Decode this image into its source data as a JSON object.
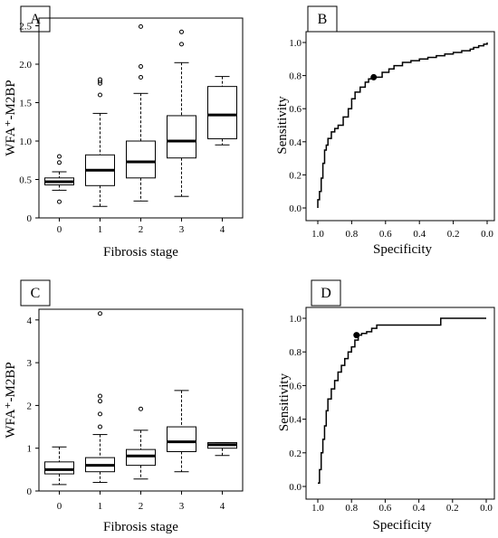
{
  "chart_data": [
    {
      "panel": "A",
      "type": "box",
      "xlabel": "Fibrosis stage",
      "ylabel": "WFA⁺-M2BP",
      "categories": [
        "0",
        "1",
        "2",
        "3",
        "4"
      ],
      "yticks": [
        "0",
        "0.5",
        "1.0",
        "1.5",
        "2.0",
        "2.5"
      ],
      "ylim": [
        0,
        2.6
      ],
      "boxes": [
        {
          "stage": "0",
          "low": 0.36,
          "q1": 0.43,
          "median": 0.47,
          "q3": 0.52,
          "high": 0.6,
          "outliers": [
            0.8,
            0.72,
            0.21
          ]
        },
        {
          "stage": "1",
          "low": 0.15,
          "q1": 0.42,
          "median": 0.62,
          "q3": 0.82,
          "high": 1.36,
          "outliers": [
            1.6,
            1.75,
            1.78,
            1.8
          ]
        },
        {
          "stage": "2",
          "low": 0.22,
          "q1": 0.52,
          "median": 0.73,
          "q3": 1.0,
          "high": 1.62,
          "outliers": [
            1.83,
            1.97,
            2.49
          ]
        },
        {
          "stage": "3",
          "low": 0.28,
          "q1": 0.78,
          "median": 1.0,
          "q3": 1.33,
          "high": 2.02,
          "outliers": [
            2.26,
            2.42
          ]
        },
        {
          "stage": "4",
          "low": 0.95,
          "q1": 1.03,
          "median": 1.34,
          "q3": 1.71,
          "high": 1.84,
          "outliers": []
        }
      ]
    },
    {
      "panel": "B",
      "type": "line",
      "xlabel": "Specificity",
      "ylabel": "Sensitivity",
      "xticks": [
        "1.0",
        "0.8",
        "0.6",
        "0.4",
        "0.2",
        "0.0"
      ],
      "yticks": [
        "0.0",
        "0.2",
        "0.4",
        "0.6",
        "0.8",
        "1.0"
      ],
      "xlim": [
        1.0,
        0.0
      ],
      "ylim": [
        0.0,
        1.0
      ],
      "x": [
        1.0,
        1.0,
        0.99,
        0.98,
        0.97,
        0.96,
        0.95,
        0.94,
        0.92,
        0.9,
        0.88,
        0.85,
        0.82,
        0.8,
        0.78,
        0.75,
        0.72,
        0.7,
        0.67,
        0.62,
        0.58,
        0.55,
        0.5,
        0.45,
        0.4,
        0.35,
        0.3,
        0.25,
        0.2,
        0.15,
        0.1,
        0.08,
        0.05,
        0.02,
        0.0
      ],
      "y": [
        0.0,
        0.05,
        0.1,
        0.18,
        0.27,
        0.35,
        0.38,
        0.42,
        0.46,
        0.48,
        0.5,
        0.55,
        0.6,
        0.66,
        0.7,
        0.73,
        0.76,
        0.78,
        0.79,
        0.82,
        0.84,
        0.86,
        0.88,
        0.89,
        0.9,
        0.91,
        0.92,
        0.93,
        0.94,
        0.95,
        0.96,
        0.97,
        0.98,
        0.99,
        1.0
      ],
      "marker": {
        "x": 0.67,
        "y": 0.79
      }
    },
    {
      "panel": "C",
      "type": "box",
      "xlabel": "Fibrosis stage",
      "ylabel": "WFA⁺-M2BP",
      "categories": [
        "0",
        "1",
        "2",
        "3",
        "4"
      ],
      "yticks": [
        "0",
        "1",
        "2",
        "3",
        "4"
      ],
      "ylim": [
        0,
        4.25
      ],
      "boxes": [
        {
          "stage": "0",
          "low": 0.15,
          "q1": 0.4,
          "median": 0.5,
          "q3": 0.68,
          "high": 1.03,
          "outliers": []
        },
        {
          "stage": "1",
          "low": 0.2,
          "q1": 0.45,
          "median": 0.6,
          "q3": 0.78,
          "high": 1.32,
          "outliers": [
            1.5,
            1.8,
            2.1,
            2.22,
            4.15
          ]
        },
        {
          "stage": "2",
          "low": 0.28,
          "q1": 0.6,
          "median": 0.82,
          "q3": 0.97,
          "high": 1.42,
          "outliers": [
            1.92
          ]
        },
        {
          "stage": "3",
          "low": 0.45,
          "q1": 0.92,
          "median": 1.15,
          "q3": 1.5,
          "high": 2.35,
          "outliers": []
        },
        {
          "stage": "4",
          "low": 0.83,
          "q1": 1.0,
          "median": 1.08,
          "q3": 1.13,
          "high": 1.13,
          "outliers": []
        }
      ]
    },
    {
      "panel": "D",
      "type": "line",
      "xlabel": "Specificity",
      "ylabel": "Sensitivity",
      "xticks": [
        "1.0",
        "0.8",
        "0.6",
        "0.4",
        "0.2",
        "0.0"
      ],
      "yticks": [
        "0.0",
        "0.2",
        "0.4",
        "0.6",
        "0.8",
        "1.0"
      ],
      "xlim": [
        1.0,
        0.0
      ],
      "ylim": [
        0.0,
        1.0
      ],
      "x": [
        1.0,
        0.99,
        0.98,
        0.97,
        0.96,
        0.95,
        0.94,
        0.92,
        0.9,
        0.88,
        0.86,
        0.84,
        0.82,
        0.8,
        0.78,
        0.76,
        0.74,
        0.71,
        0.68,
        0.65,
        0.6,
        0.5,
        0.4,
        0.3,
        0.27,
        0.2,
        0.1,
        0.05,
        0.0
      ],
      "y": [
        0.02,
        0.1,
        0.2,
        0.28,
        0.36,
        0.45,
        0.52,
        0.58,
        0.63,
        0.68,
        0.72,
        0.76,
        0.8,
        0.83,
        0.87,
        0.9,
        0.91,
        0.92,
        0.94,
        0.96,
        0.96,
        0.96,
        0.96,
        0.96,
        1.0,
        1.0,
        1.0,
        1.0,
        1.0
      ],
      "marker": {
        "x": 0.77,
        "y": 0.9
      }
    }
  ]
}
